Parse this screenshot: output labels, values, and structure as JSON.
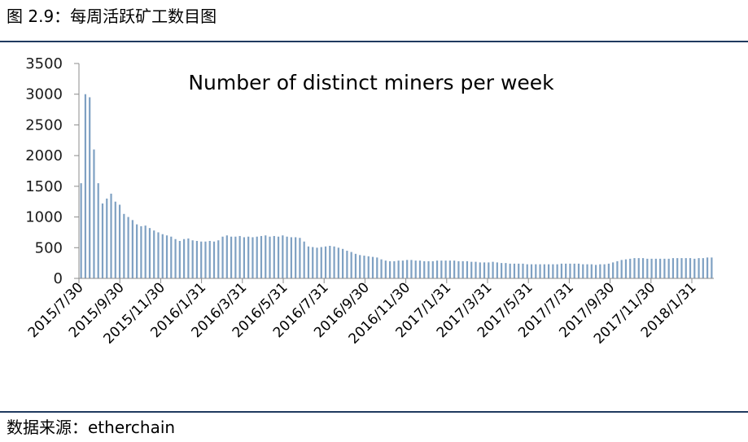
{
  "figure": {
    "title": "图 2.9：每周活跃矿工数目图",
    "source": "数据来源：etherchain"
  },
  "colors": {
    "bar": "#7fa1c3",
    "axis": "#8c8c8c",
    "rule": "#1f3a5f"
  },
  "chart_data": {
    "type": "bar",
    "title": "Number of distinct miners per week",
    "xlabel": "",
    "ylabel": "",
    "ylim": [
      0,
      3500
    ],
    "yticks": [
      0,
      500,
      1000,
      1500,
      2000,
      2500,
      3000,
      3500
    ],
    "grid": false,
    "xtick_labels": [
      "2015/7/30",
      "2015/9/30",
      "2015/11/30",
      "2016/1/31",
      "2016/3/31",
      "2016/5/31",
      "2016/7/31",
      "2016/9/30",
      "2016/11/30",
      "2017/1/31",
      "2017/3/31",
      "2017/5/31",
      "2017/7/31",
      "2017/9/30",
      "2017/11/30",
      "2018/1/31"
    ],
    "series": [
      {
        "values": [
          1550,
          3000,
          2950,
          2100,
          1550,
          1220,
          1300,
          1380,
          1250,
          1200,
          1050,
          1000,
          950,
          880,
          850,
          860,
          820,
          780,
          750,
          720,
          700,
          680,
          640,
          610,
          640,
          650,
          620,
          610,
          600,
          600,
          610,
          600,
          620,
          680,
          700,
          680,
          680,
          690,
          670,
          680,
          670,
          680,
          690,
          700,
          680,
          690,
          680,
          700,
          680,
          670,
          670,
          660,
          600,
          520,
          510,
          500,
          510,
          520,
          530,
          520,
          500,
          480,
          450,
          430,
          400,
          380,
          370,
          360,
          350,
          340,
          310,
          290,
          280,
          280,
          290,
          290,
          300,
          300,
          290,
          290,
          280,
          280,
          280,
          290,
          290,
          290,
          290,
          290,
          280,
          280,
          280,
          270,
          270,
          260,
          260,
          260,
          270,
          260,
          250,
          250,
          240,
          240,
          240,
          240,
          230,
          230,
          230,
          230,
          230,
          230,
          230,
          230,
          240,
          240,
          240,
          240,
          240,
          230,
          230,
          230,
          220,
          230,
          230,
          240,
          260,
          280,
          300,
          310,
          320,
          330,
          330,
          330,
          320,
          320,
          320,
          320,
          320,
          320,
          330,
          330,
          330,
          330,
          330,
          320,
          330,
          330,
          340,
          340
        ]
      }
    ]
  }
}
